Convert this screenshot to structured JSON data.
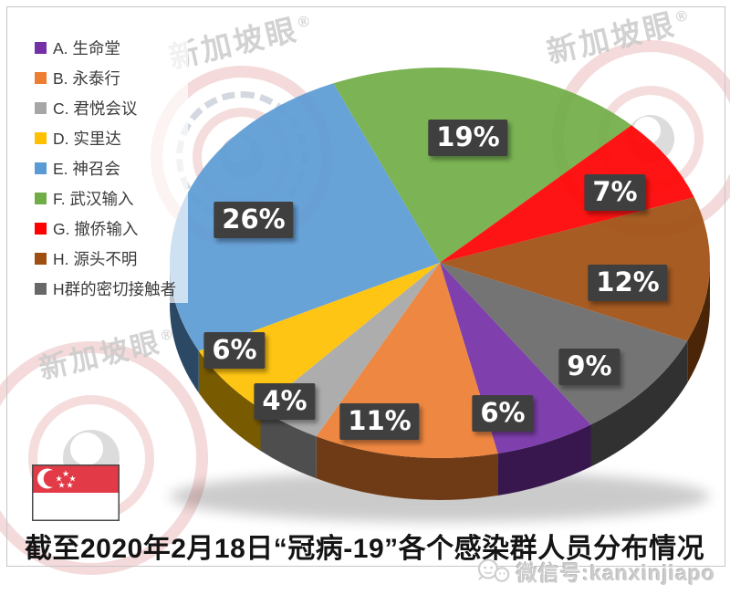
{
  "chart_data": {
    "type": "pie",
    "style": "3d-pie",
    "title": "截至2020年2月18日“冠病-19”各个感染群人员分布情况",
    "legend_position": "left",
    "unit": "%",
    "series": [
      {
        "label": "A. 生命堂",
        "value": 6,
        "color": "#7430A6"
      },
      {
        "label": "B. 永泰行",
        "value": 11,
        "color": "#ED7D31"
      },
      {
        "label": "C. 君悦会议",
        "value": 4,
        "color": "#A6A6A6"
      },
      {
        "label": "D. 实里达",
        "value": 6,
        "color": "#FFC000"
      },
      {
        "label": "E. 神召会",
        "value": 26,
        "color": "#5B9BD5"
      },
      {
        "label": "F. 武汉输入",
        "value": 19,
        "color": "#70AD47"
      },
      {
        "label": "G. 撤侨输入",
        "value": 7,
        "color": "#FE0000"
      },
      {
        "label": "H. 源头不明",
        "value": 12,
        "color": "#9E4E10"
      },
      {
        "label": "H群的密切接触者",
        "value": 9,
        "color": "#686868"
      }
    ],
    "data_labels": [
      "6%",
      "11%",
      "4%",
      "6%",
      "26%",
      "19%",
      "7%",
      "12%",
      "9%"
    ]
  },
  "watermark": {
    "brand": "新加坡眼",
    "registered_mark": "®"
  },
  "footer": {
    "caption": "截至2020年2月18日“冠病-19”各个感染群人员分布情况",
    "wechat_label": "微信号:kanxinjiapo"
  },
  "icons": {
    "flag": "singapore-flag",
    "wechat": "wechat-chat-bubbles"
  },
  "colors": {
    "label_box": "#3F3F3F",
    "label_text": "#FFFFFF",
    "legend_text": "#3B3B3B",
    "watermark": "#CBCBCB",
    "flag_red": "#E23B47"
  }
}
